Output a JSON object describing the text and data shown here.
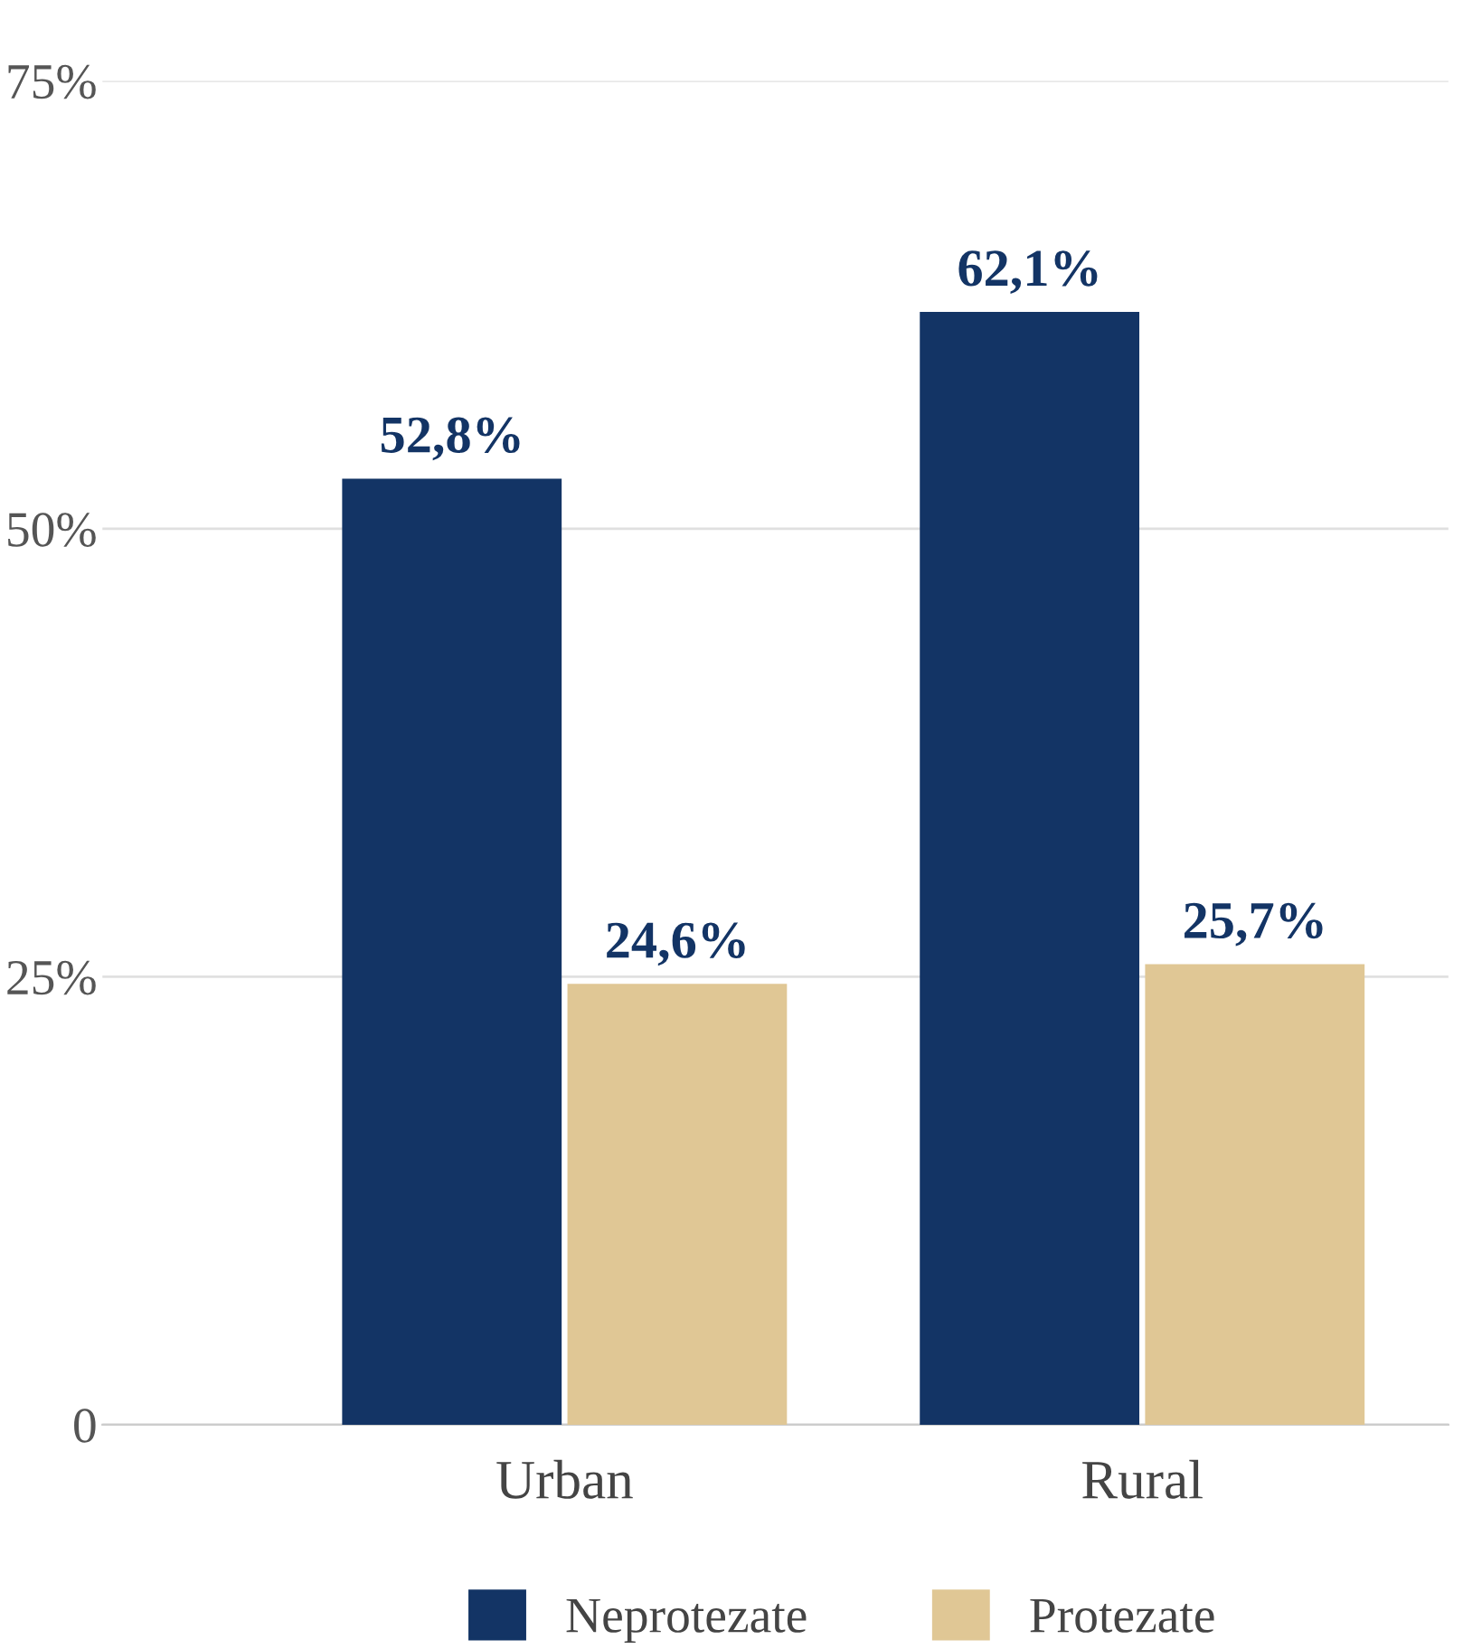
{
  "chart_data": {
    "type": "bar",
    "categories": [
      "Urban",
      "Rural"
    ],
    "series": [
      {
        "name": "Neprotezate",
        "color": "#133465",
        "values": [
          52.8,
          62.1
        ],
        "value_labels": [
          "52,8%",
          "62,1%"
        ]
      },
      {
        "name": "Protezate",
        "color": "#e0c795",
        "values": [
          24.6,
          25.7
        ],
        "value_labels": [
          "24,6%",
          "25,7%"
        ]
      }
    ],
    "ylim": [
      0,
      75
    ],
    "yticks": [
      {
        "value": 0,
        "label": "0"
      },
      {
        "value": 25,
        "label": "25%"
      },
      {
        "value": 50,
        "label": "50%"
      },
      {
        "value": 75,
        "label": "75%"
      }
    ],
    "grid": "y",
    "legend": "bottom"
  }
}
